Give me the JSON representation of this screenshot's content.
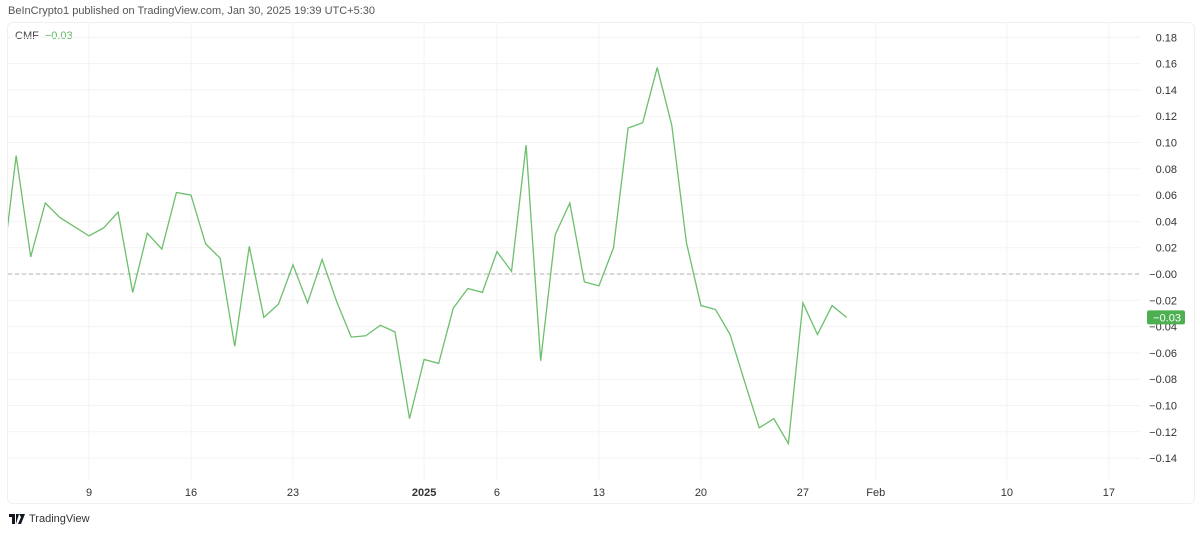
{
  "header": {
    "text": "BeInCrypto1 published on TradingView.com, Jan 30, 2025 19:39 UTC+5:30"
  },
  "legend": {
    "name": "CMF",
    "value": "−0.03"
  },
  "footer": {
    "brand": "TradingView",
    "logo_icon": "tradingview-logo-icon"
  },
  "colors": {
    "line": "#6cbf6c",
    "last_value_bg": "#4caf50",
    "zero_line": "#b0b0b0",
    "grid": "#f3f3f3"
  },
  "chart_data": {
    "type": "line",
    "title": "",
    "xlabel": "",
    "ylabel": "",
    "ylim": [
      -0.156,
      0.192
    ],
    "xlim": [
      "2024-12-03",
      "2025-02-19"
    ],
    "grid": true,
    "reference_line": 0,
    "last_value_label": "−0.03",
    "y_ticks": [
      "0.18",
      "0.16",
      "0.14",
      "0.12",
      "0.10",
      "0.08",
      "0.06",
      "0.04",
      "0.02",
      "−0.00",
      "−0.02",
      "−0.04",
      "−0.06",
      "−0.08",
      "−0.10",
      "−0.12",
      "−0.14"
    ],
    "y_tick_values": [
      0.18,
      0.16,
      0.14,
      0.12,
      0.1,
      0.08,
      0.06,
      0.04,
      0.02,
      0,
      -0.02,
      -0.04,
      -0.06,
      -0.08,
      -0.1,
      -0.12,
      -0.14
    ],
    "x_ticks": [
      {
        "label": "9",
        "date": "2024-12-09",
        "bold": false
      },
      {
        "label": "16",
        "date": "2024-12-16",
        "bold": false
      },
      {
        "label": "23",
        "date": "2024-12-23",
        "bold": false
      },
      {
        "label": "2025",
        "date": "2025-01-01",
        "bold": true
      },
      {
        "label": "6",
        "date": "2025-01-06",
        "bold": false
      },
      {
        "label": "13",
        "date": "2025-01-13",
        "bold": false
      },
      {
        "label": "20",
        "date": "2025-01-20",
        "bold": false
      },
      {
        "label": "27",
        "date": "2025-01-27",
        "bold": false
      },
      {
        "label": "Feb",
        "date": "2025-02-01",
        "bold": false
      },
      {
        "label": "10",
        "date": "2025-02-10",
        "bold": false
      },
      {
        "label": "17",
        "date": "2025-02-17",
        "bold": false
      }
    ],
    "series": [
      {
        "start_date": "2024-12-03",
        "values": [
          -0.002,
          0.09,
          0.013,
          0.054,
          0.043,
          0.036,
          0.029,
          0.035,
          0.047,
          -0.014,
          0.031,
          0.019,
          0.062,
          0.06,
          0.023,
          0.012,
          -0.055,
          0.021,
          -0.033,
          -0.023,
          0.007,
          -0.022,
          0.011,
          -0.021,
          -0.048,
          -0.047,
          -0.039,
          -0.044,
          -0.11,
          -0.065,
          -0.068,
          -0.026,
          -0.011,
          -0.014,
          0.017,
          0.002,
          0.098,
          -0.066,
          0.03,
          0.054,
          -0.006,
          -0.009,
          0.02,
          0.111,
          0.115,
          0.157,
          0.113,
          0.024,
          -0.024,
          -0.027,
          -0.046,
          -0.082,
          -0.117,
          -0.11,
          -0.129,
          -0.022,
          -0.046,
          -0.024,
          -0.033
        ]
      }
    ]
  }
}
